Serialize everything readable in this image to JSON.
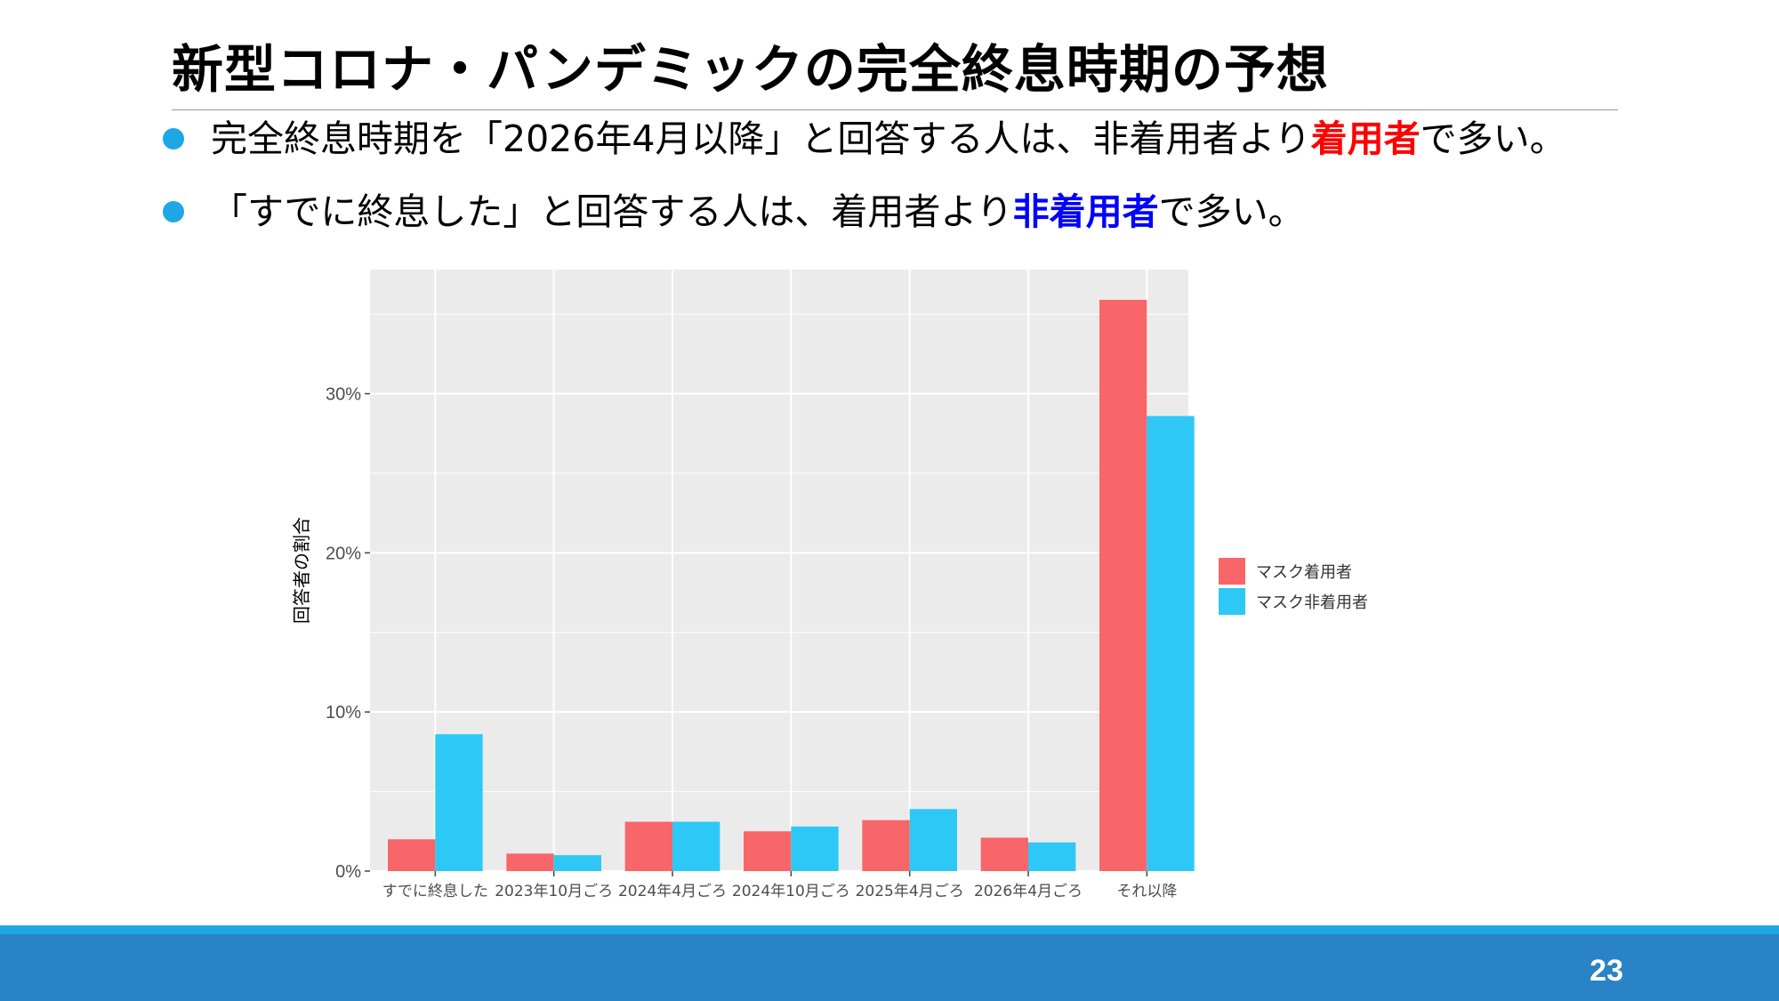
{
  "slide": {
    "title": "新型コロナ・パンデミックの完全終息時期の予想",
    "page_number": "23"
  },
  "bullets": [
    {
      "pre": "完全終息時期を「2026年4月以降」と回答する人は、非着用者より",
      "em": "着用者",
      "post": "で多い。",
      "em_color": "#ff0000"
    },
    {
      "pre": "「すでに終息した」と回答する人は、着用者より",
      "em": "非着用者",
      "post": "で多い。",
      "em_color": "#0000ff"
    }
  ],
  "colors": {
    "accent": "#1ea7e4",
    "footer": "#2a83c6",
    "panel_bg": "#ebebeb",
    "grid": "#ffffff"
  },
  "chart_data": {
    "type": "bar",
    "title": "",
    "xlabel": "",
    "ylabel": "回答者の割合",
    "categories": [
      "すでに終息した",
      "2023年10月ごろ",
      "2024年4月ごろ",
      "2024年10月ごろ",
      "2025年4月ごろ",
      "2026年4月ごろ",
      "それ以降"
    ],
    "series": [
      {
        "name": "マスク着用者",
        "color": "#f8666a",
        "values": [
          2.0,
          1.1,
          3.1,
          2.5,
          3.2,
          2.1,
          35.9
        ]
      },
      {
        "name": "マスク非着用者",
        "color": "#2ec8f6",
        "values": [
          8.6,
          1.0,
          3.1,
          2.8,
          3.9,
          1.8,
          28.6
        ]
      }
    ],
    "ylim": [
      0,
      37.8
    ],
    "yticks": [
      0,
      10,
      20,
      30
    ],
    "ytick_labels": [
      "0%",
      "10%",
      "20%",
      "30%"
    ],
    "grid": true,
    "legend_position": "right"
  }
}
